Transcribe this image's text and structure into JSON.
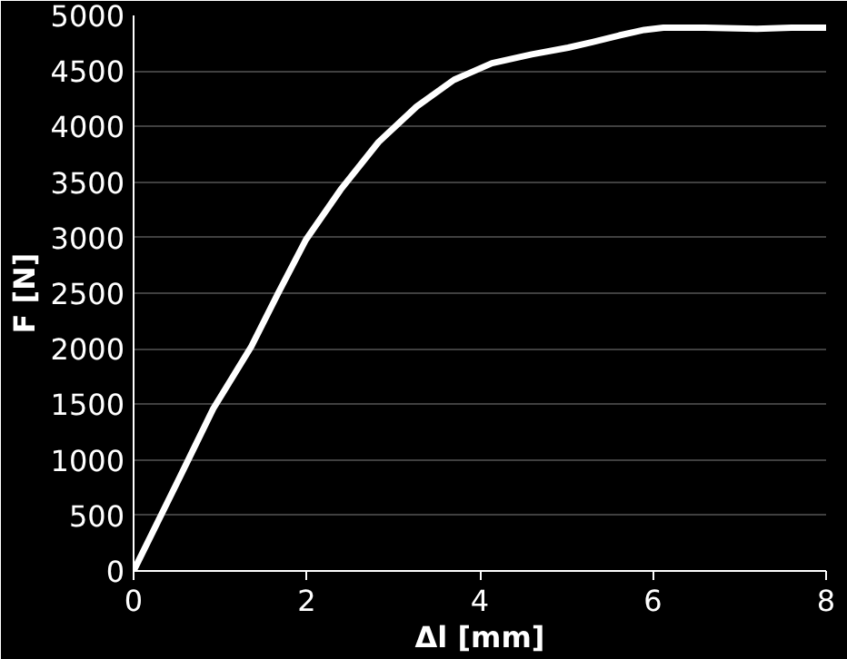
{
  "chart_data": {
    "type": "line",
    "xlabel": "Δl [mm]",
    "ylabel": "F [N]",
    "x": [
      0,
      0.5,
      0.92,
      1.36,
      1.67,
      1.99,
      2.39,
      2.83,
      3.27,
      3.7,
      4.14,
      4.6,
      5.02,
      5.3,
      5.61,
      5.9,
      6.12,
      6.6,
      7.2,
      7.6,
      8.0
    ],
    "series": [
      {
        "color": "#ffffff",
        "values": [
          0,
          790,
          1460,
          2020,
          2500,
          2980,
          3430,
          3860,
          4180,
          4420,
          4570,
          4650,
          4710,
          4760,
          4820,
          4870,
          4890,
          4890,
          4880,
          4890,
          4890
        ]
      }
    ],
    "xlim": [
      0,
      8
    ],
    "xticks": [
      0,
      2,
      4,
      6,
      8
    ],
    "ylim": [
      0,
      5000
    ],
    "yticks": [
      0,
      500,
      1000,
      1500,
      2000,
      2500,
      3000,
      3500,
      4000,
      4500,
      5000
    ],
    "grid": "y",
    "marker": "none",
    "line_style": "solid"
  }
}
